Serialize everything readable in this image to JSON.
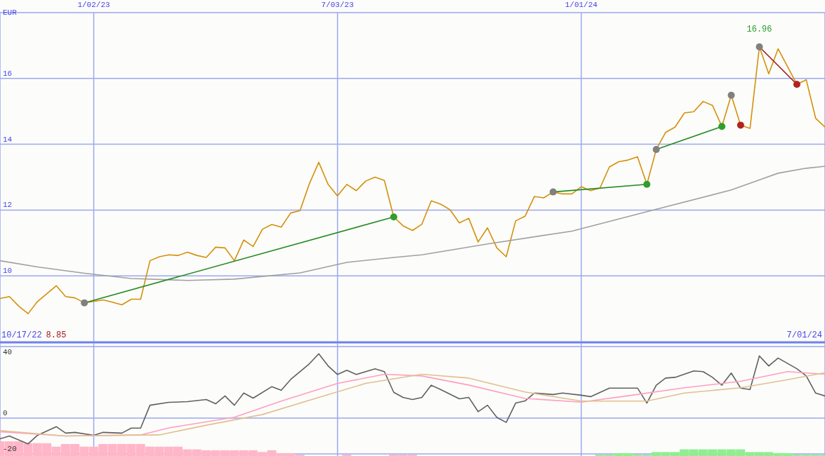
{
  "chart_data": [
    {
      "type": "line",
      "ylabel": "EUR",
      "xlim": [
        "2022-10-24",
        "2024-07-01"
      ],
      "xticks": [
        {
          "value": "2023-01-02",
          "label": "1/02/23"
        },
        {
          "value": "2023-07-03",
          "label": "7/03/23"
        },
        {
          "value": "2024-01-01",
          "label": "1/01/24"
        }
      ],
      "ylim": [
        8,
        18
      ],
      "yticks": [
        10,
        12,
        14,
        16
      ],
      "grid": true,
      "annotations": [
        "10/17/22",
        "8.85",
        "7/01/24",
        {
          "text": "16.96",
          "x": "2024-05-13",
          "y": 16.96
        }
      ],
      "series": [
        {
          "color": "#d4900c",
          "marker": "none",
          "x": [
            "2022-10-24",
            "2022-10-31",
            "2022-11-07",
            "2022-11-14",
            "2022-11-21",
            "2022-12-05",
            "2022-12-12",
            "2022-12-19",
            "2022-12-26",
            "2023-01-09",
            "2023-01-16",
            "2023-01-23",
            "2023-01-30",
            "2023-02-06",
            "2023-02-13",
            "2023-02-20",
            "2023-02-27",
            "2023-03-06",
            "2023-03-13",
            "2023-03-20",
            "2023-03-27",
            "2023-04-03",
            "2023-04-10",
            "2023-04-17",
            "2023-04-24",
            "2023-05-01",
            "2023-05-08",
            "2023-05-15",
            "2023-05-22",
            "2023-05-29",
            "2023-06-05",
            "2023-06-12",
            "2023-06-19",
            "2023-06-26",
            "2023-07-03",
            "2023-07-10",
            "2023-07-17",
            "2023-07-24",
            "2023-07-31",
            "2023-08-07",
            "2023-08-14",
            "2023-08-21",
            "2023-08-28",
            "2023-09-04",
            "2023-09-11",
            "2023-09-18",
            "2023-09-25",
            "2023-10-02",
            "2023-10-09",
            "2023-10-16",
            "2023-10-23",
            "2023-10-30",
            "2023-11-06",
            "2023-11-13",
            "2023-11-20",
            "2023-11-27",
            "2023-12-04",
            "2023-12-11",
            "2023-12-18",
            "2023-12-25",
            "2024-01-01",
            "2024-01-08",
            "2024-01-15",
            "2024-01-22",
            "2024-01-29",
            "2024-02-05",
            "2024-02-12",
            "2024-02-19",
            "2024-02-26",
            "2024-03-04",
            "2024-03-11",
            "2024-03-18",
            "2024-03-25",
            "2024-04-01",
            "2024-04-08",
            "2024-04-15",
            "2024-04-22",
            "2024-04-29",
            "2024-05-06",
            "2024-05-13",
            "2024-05-20",
            "2024-05-27",
            "2024-06-10",
            "2024-06-17",
            "2024-06-24",
            "2024-07-01"
          ],
          "values": [
            9.31,
            9.37,
            9.08,
            8.85,
            9.22,
            9.7,
            9.37,
            9.33,
            9.18,
            9.27,
            9.2,
            9.12,
            9.29,
            9.29,
            10.46,
            10.58,
            10.64,
            10.62,
            10.72,
            10.62,
            10.56,
            10.87,
            10.85,
            10.46,
            11.09,
            10.89,
            11.42,
            11.56,
            11.48,
            11.91,
            11.98,
            12.8,
            13.45,
            12.78,
            12.43,
            12.78,
            12.59,
            12.88,
            13.0,
            12.9,
            11.79,
            11.52,
            11.38,
            11.57,
            12.28,
            12.18,
            12.01,
            11.61,
            11.75,
            11.03,
            11.46,
            10.85,
            10.58,
            11.67,
            11.81,
            12.41,
            12.37,
            12.55,
            12.49,
            12.49,
            12.71,
            12.59,
            12.67,
            13.31,
            13.47,
            13.52,
            13.62,
            12.78,
            13.84,
            14.36,
            14.52,
            14.95,
            14.99,
            15.3,
            15.18,
            14.54,
            15.49,
            14.58,
            14.48,
            16.96,
            16.14,
            16.9,
            15.82,
            15.96,
            14.79,
            14.52
          ]
        },
        {
          "color": "#a0a0a0",
          "marker": "none",
          "x": [
            "2022-10-24",
            "2022-11-21",
            "2022-12-26",
            "2023-01-30",
            "2023-03-13",
            "2023-04-17",
            "2023-06-05",
            "2023-07-10",
            "2023-08-14",
            "2023-09-04",
            "2023-10-23",
            "2023-12-25",
            "2024-02-19",
            "2024-04-22",
            "2024-05-27",
            "2024-06-17",
            "2024-07-01"
          ],
          "values": [
            10.46,
            10.27,
            10.08,
            9.92,
            9.86,
            9.9,
            10.09,
            10.41,
            10.56,
            10.64,
            10.97,
            11.36,
            11.95,
            12.61,
            13.12,
            13.27,
            13.33
          ]
        },
        {
          "color": "#228b22",
          "marker": "circle",
          "colors": [
            "#808080",
            "#2e9e2e"
          ],
          "x": [
            "2022-12-26",
            "2023-08-14"
          ],
          "values": [
            9.18,
            11.79
          ]
        },
        {
          "color": "#228b22",
          "marker": "circle",
          "colors": [
            "#808080",
            "#2e9e2e"
          ],
          "x": [
            "2023-12-11",
            "2024-02-19"
          ],
          "values": [
            12.55,
            12.78
          ]
        },
        {
          "color": "#228b22",
          "marker": "circle",
          "colors": [
            "#808080",
            "#2e9e2e"
          ],
          "x": [
            "2024-02-26",
            "2024-04-15"
          ],
          "values": [
            13.84,
            14.54
          ]
        },
        {
          "type": "scatter",
          "marker": "circle",
          "colors": [
            "#808080",
            "#b22222"
          ],
          "x": [
            "2024-04-22",
            "2024-04-29"
          ],
          "values": [
            15.49,
            14.58
          ]
        },
        {
          "color": "#a01818",
          "marker": "circle",
          "colors": [
            "#808080",
            "#b22222"
          ],
          "x": [
            "2024-05-13",
            "2024-06-10"
          ],
          "values": [
            16.96,
            15.82
          ]
        }
      ]
    },
    {
      "type": "line",
      "xlim": [
        "2022-10-24",
        "2024-07-01"
      ],
      "xticks": [
        {
          "value": "2023-01-02",
          "label": null
        },
        {
          "value": "2023-07-03",
          "label": null
        },
        {
          "value": "2024-01-01",
          "label": null
        }
      ],
      "ylim": [
        -22,
        42
      ],
      "yticks": [
        -20,
        0,
        40
      ],
      "grid": true,
      "tick_labels": "y",
      "series": [
        {
          "type": "bar",
          "colors": [
            "#ffb6c8",
            "#ffb6c8",
            "#ffb6c8",
            "#ffb6c8",
            "#ffb6c8",
            "#ffb6c8",
            "#ffb6c8",
            "#ffb6c8",
            "#ffb6c8",
            "#ffb6c8",
            "#ffb6c8",
            "#ffb6c8",
            "#ffb6c8",
            "#ffb6c8",
            "#ffb6c8",
            "#ffb6c8",
            "#ffb6c8",
            "#ffb6c8",
            "#ffb6c8",
            "#ffb6c8",
            "#ffb6c8",
            "#ffb6c8",
            "#ffb6c8",
            "#ffb6c8",
            "#ffb6c8",
            "#ffb6c8",
            "#ffb6c8",
            "#ffb6c8",
            "#ffb6c8",
            "#ffb6c8",
            "#ffb6c8",
            "#ffb6c8",
            "#ffb6c8",
            "#ffb6c8",
            "#ffb6c8",
            "#ffb6c8",
            "#ffb6c8",
            "#90ee90",
            "#90ee90",
            "#90ee90",
            "#90ee90",
            "#90ee90",
            "#90ee90",
            "#90ee90",
            "#90ee90",
            "#90ee90",
            "#90ee90",
            "#90ee90",
            "#90ee90",
            "#90ee90",
            "#90ee90",
            "#90ee90",
            "#90ee90",
            "#90ee90",
            "#90ee90",
            "#90ee90",
            "#90ee90",
            "#90ee90",
            "#90ee90",
            "#90ee90",
            "#90ee90",
            "#90ee90"
          ],
          "x": [
            "2022-10-24",
            "2022-10-31",
            "2022-11-07",
            "2022-11-14",
            "2022-11-21",
            "2022-11-28",
            "2022-12-05",
            "2022-12-12",
            "2022-12-19",
            "2022-12-26",
            "2023-01-02",
            "2023-01-09",
            "2023-01-16",
            "2023-01-23",
            "2023-01-30",
            "2023-02-06",
            "2023-02-13",
            "2023-02-20",
            "2023-02-27",
            "2023-03-06",
            "2023-03-13",
            "2023-03-20",
            "2023-03-27",
            "2023-04-03",
            "2023-04-10",
            "2023-04-17",
            "2023-04-24",
            "2023-05-01",
            "2023-05-08",
            "2023-05-15",
            "2023-05-22",
            "2023-05-29",
            "2023-06-05",
            "2023-07-10",
            "2023-08-14",
            "2023-08-21",
            "2023-08-28",
            "2024-01-15",
            "2024-01-22",
            "2024-01-29",
            "2024-02-05",
            "2024-02-12",
            "2024-02-19",
            "2024-02-26",
            "2024-03-04",
            "2024-03-11",
            "2024-03-18",
            "2024-03-25",
            "2024-04-01",
            "2024-04-08",
            "2024-04-15",
            "2024-04-22",
            "2024-04-29",
            "2024-05-06",
            "2024-05-13",
            "2024-05-20",
            "2024-05-27",
            "2024-06-03",
            "2024-06-10",
            "2024-06-17",
            "2024-06-24",
            "2024-07-01"
          ],
          "base": [
            -22,
            -22,
            -22,
            -22,
            -22,
            -22,
            -22,
            -22,
            -22,
            -22,
            -22,
            -22,
            -22,
            -22,
            -22,
            -22,
            -22,
            -22,
            -22,
            -22,
            -22,
            -22,
            -22,
            -22,
            -22,
            -22,
            -22,
            -22,
            -22,
            -22,
            -22,
            -22,
            -22,
            -22,
            -22,
            -22,
            -22,
            -22,
            -22,
            -22,
            -22,
            -22,
            -22,
            -22,
            -22,
            -22,
            -22,
            -22,
            -22,
            -22,
            -22,
            -22,
            -22,
            -22,
            -22,
            -22,
            -22,
            -22,
            -22,
            -22,
            -22,
            -22
          ],
          "values": [
            9,
            9,
            9,
            8,
            8,
            8,
            6,
            7.5,
            7.5,
            6,
            6,
            7.5,
            7.5,
            7.5,
            7.5,
            7.5,
            6,
            6,
            6,
            6,
            4.5,
            4.5,
            4,
            4,
            4,
            4,
            4,
            4,
            3,
            4,
            2.4,
            2.4,
            1.5,
            1.5,
            1.5,
            1.5,
            1.5,
            1.5,
            1.5,
            2.4,
            2.4,
            1.5,
            1.5,
            3,
            3,
            3,
            4.5,
            4.5,
            4.5,
            4.5,
            4.5,
            4.5,
            4.5,
            3,
            3,
            3,
            2.4,
            2.4,
            1.5,
            1.5,
            1.5,
            1.5
          ]
        },
        {
          "color": "#606060",
          "marker": "none",
          "x": [
            "2022-10-24",
            "2022-10-31",
            "2022-11-14",
            "2022-11-21",
            "2022-12-05",
            "2022-12-12",
            "2022-12-19",
            "2023-01-02",
            "2023-01-09",
            "2023-01-23",
            "2023-01-30",
            "2023-02-06",
            "2023-02-13",
            "2023-02-27",
            "2023-03-13",
            "2023-03-27",
            "2023-04-03",
            "2023-04-10",
            "2023-04-17",
            "2023-04-24",
            "2023-05-01",
            "2023-05-15",
            "2023-05-22",
            "2023-05-29",
            "2023-06-12",
            "2023-06-19",
            "2023-06-26",
            "2023-07-03",
            "2023-07-10",
            "2023-07-17",
            "2023-07-31",
            "2023-08-07",
            "2023-08-14",
            "2023-08-21",
            "2023-08-28",
            "2023-09-04",
            "2023-09-11",
            "2023-09-18",
            "2023-10-02",
            "2023-10-09",
            "2023-10-16",
            "2023-10-23",
            "2023-10-30",
            "2023-11-06",
            "2023-11-13",
            "2023-11-20",
            "2023-11-27",
            "2023-12-11",
            "2023-12-18",
            "2024-01-01",
            "2024-01-08",
            "2024-01-22",
            "2024-02-12",
            "2024-02-19",
            "2024-02-26",
            "2024-03-04",
            "2024-03-11",
            "2024-03-25",
            "2024-04-01",
            "2024-04-08",
            "2024-04-15",
            "2024-04-22",
            "2024-04-29",
            "2024-05-06",
            "2024-05-13",
            "2024-05-20",
            "2024-05-27",
            "2024-06-10",
            "2024-06-17",
            "2024-06-24",
            "2024-07-01"
          ],
          "values": [
            -11.6,
            -10,
            -14.4,
            -9.6,
            -4.8,
            -8.4,
            -8,
            -9.6,
            -8,
            -8.4,
            -5.6,
            -5.6,
            7.2,
            8.8,
            9.2,
            10.4,
            8,
            12.4,
            7.2,
            14,
            11.2,
            17.6,
            15.6,
            21.6,
            30.4,
            36,
            29.2,
            24.4,
            26.8,
            24.4,
            27.6,
            26,
            14.4,
            11.6,
            10.4,
            11.6,
            18.4,
            16,
            10.8,
            11.6,
            3.6,
            7.2,
            0.4,
            -2.4,
            8.4,
            9.6,
            14,
            13.2,
            14,
            12.8,
            12,
            16.8,
            16.8,
            8.4,
            18.4,
            22.4,
            22.8,
            26.4,
            26,
            22.8,
            18.4,
            25.2,
            16.8,
            16,
            34.8,
            29.2,
            33.6,
            27.6,
            23.6,
            14,
            12.4
          ]
        },
        {
          "color": "#ff9fbf",
          "marker": "none",
          "x": [
            "2022-10-24",
            "2022-12-12",
            "2023-02-06",
            "2023-02-27",
            "2023-04-17",
            "2023-05-22",
            "2023-07-03",
            "2023-08-07",
            "2023-09-04",
            "2023-10-09",
            "2023-11-20",
            "2024-01-01",
            "2024-02-05",
            "2024-03-18",
            "2024-04-29",
            "2024-06-03",
            "2024-07-01"
          ],
          "values": [
            -7.6,
            -10,
            -9.4,
            -5.5,
            0.5,
            9.5,
            19.4,
            24.5,
            23.6,
            18.5,
            11,
            8.9,
            12.5,
            17,
            20.6,
            26,
            24.5
          ]
        },
        {
          "color": "#e0c090",
          "marker": "none",
          "x": [
            "2022-10-24",
            "2022-12-12",
            "2023-02-20",
            "2023-03-27",
            "2023-05-08",
            "2023-06-19",
            "2023-07-24",
            "2023-09-04",
            "2023-10-09",
            "2023-11-20",
            "2024-01-01",
            "2024-02-19",
            "2024-03-18",
            "2024-04-29",
            "2024-06-03",
            "2024-07-01"
          ],
          "values": [
            -7,
            -10,
            -9.4,
            -4,
            2,
            11.6,
            19.4,
            24.5,
            22.4,
            14.6,
            9.5,
            9.5,
            14,
            17,
            21.5,
            25.4
          ]
        }
      ]
    }
  ]
}
